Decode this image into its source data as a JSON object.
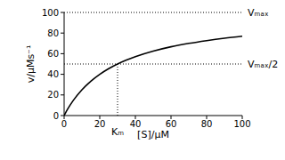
{
  "chart_data": {
    "type": "line",
    "x_label": "[S]/μM",
    "y_label": "v/μMs⁻¹",
    "x": [
      0,
      2,
      5,
      10,
      15,
      20,
      25,
      30,
      35,
      40,
      50,
      60,
      70,
      80,
      90,
      100
    ],
    "values": [
      0,
      6.3,
      14.3,
      25,
      33.3,
      40,
      45.5,
      50,
      53.8,
      57.1,
      62.5,
      66.7,
      70,
      72.7,
      75,
      76.9
    ],
    "color": "#000000",
    "xlim": [
      0,
      100
    ],
    "xticks": [
      0,
      20,
      40,
      60,
      80,
      100
    ],
    "ylim": [
      0,
      100
    ],
    "yticks": [
      0,
      20,
      40,
      60,
      80,
      100
    ],
    "grid": false,
    "annotations": [
      {
        "text": "Vₘₐₓ",
        "y": 100
      },
      {
        "text": "Vₘₐₓ/2",
        "y": 50
      },
      {
        "text": "Kₘ",
        "x": 30,
        "y": 50
      }
    ]
  }
}
